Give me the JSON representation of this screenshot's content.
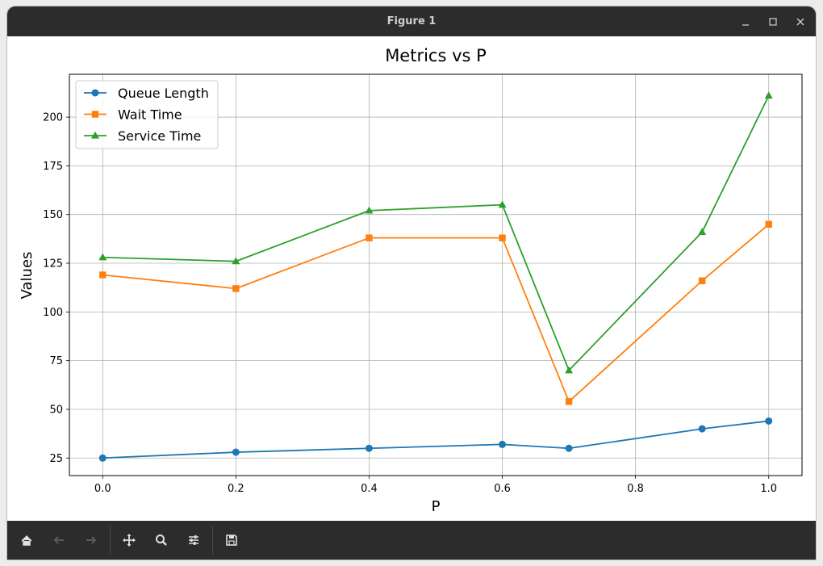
{
  "window": {
    "title": "Figure 1",
    "controls": [
      "minimize",
      "maximize",
      "close"
    ]
  },
  "toolbar": {
    "buttons": [
      {
        "name": "home-icon",
        "enabled": true
      },
      {
        "name": "back-arrow-icon",
        "enabled": false
      },
      {
        "name": "forward-arrow-icon",
        "enabled": false
      },
      {
        "name": "pan-icon",
        "enabled": true
      },
      {
        "name": "zoom-icon",
        "enabled": true
      },
      {
        "name": "configure-subplots-icon",
        "enabled": true
      },
      {
        "name": "save-icon",
        "enabled": true
      }
    ]
  },
  "chart_data": {
    "type": "line",
    "title": "Metrics vs P",
    "xlabel": "P",
    "ylabel": "Values",
    "x": [
      0.0,
      0.2,
      0.4,
      0.6,
      0.7,
      0.9,
      1.0
    ],
    "xlim": [
      -0.05,
      1.05
    ],
    "ylim": [
      16,
      222
    ],
    "xticks": [
      0.0,
      0.2,
      0.4,
      0.6,
      0.8,
      1.0
    ],
    "xtick_labels": [
      "0.0",
      "0.2",
      "0.4",
      "0.6",
      "0.8",
      "1.0"
    ],
    "yticks": [
      25,
      50,
      75,
      100,
      125,
      150,
      175,
      200
    ],
    "ytick_labels": [
      "25",
      "50",
      "75",
      "100",
      "125",
      "150",
      "175",
      "200"
    ],
    "grid": true,
    "legend_position": "top-left",
    "series": [
      {
        "name": "Queue Length",
        "marker": "circle",
        "color": "#1f77b4",
        "values": [
          25,
          28,
          30,
          32,
          30,
          40,
          44
        ]
      },
      {
        "name": "Wait Time",
        "marker": "square",
        "color": "#ff7f0e",
        "values": [
          119,
          112,
          138,
          138,
          54,
          116,
          145
        ]
      },
      {
        "name": "Service Time",
        "marker": "triangle",
        "color": "#2ca02c",
        "values": [
          128,
          126,
          152,
          155,
          70,
          141,
          211
        ]
      }
    ]
  }
}
